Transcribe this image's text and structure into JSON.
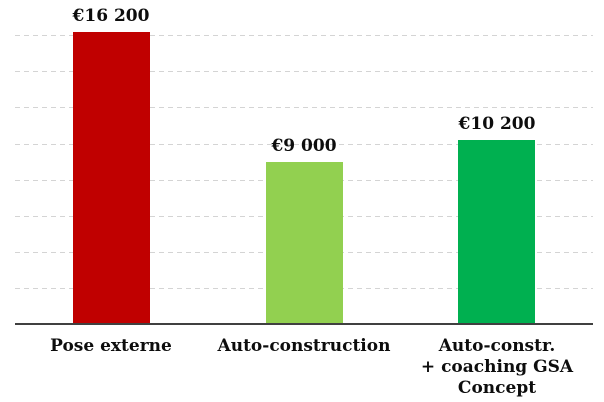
{
  "chart_data": {
    "type": "bar",
    "categories": [
      "Pose externe",
      "Auto-construction",
      "Auto-constr.\n+ coaching GSA\nConcept"
    ],
    "values": [
      16200,
      9000,
      10200
    ],
    "value_labels": [
      "€16 200",
      "€9 000",
      "€10 200"
    ],
    "bar_colors": [
      "#c00000",
      "#92d050",
      "#00b050"
    ],
    "title": "",
    "xlabel": "",
    "ylabel": "",
    "ylim": [
      0,
      16200
    ],
    "grid": {
      "visible": true,
      "step": 2000,
      "max": 16000,
      "style": "dashed",
      "color": "#d4d4d4"
    },
    "legend_position": "none",
    "axis_line_color": "#404040",
    "text_color": "#0d0d0d",
    "background_color": "#ffffff"
  }
}
